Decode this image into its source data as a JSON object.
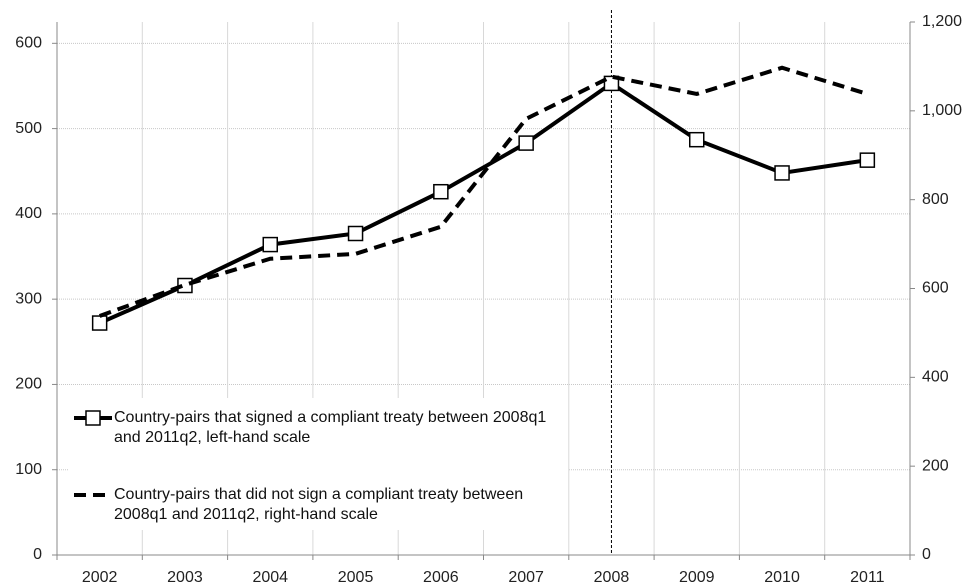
{
  "chart_data": {
    "type": "line",
    "categories": [
      "2002",
      "2003",
      "2004",
      "2005",
      "2006",
      "2007",
      "2008",
      "2009",
      "2010",
      "2011"
    ],
    "series": [
      {
        "name": "Country-pairs that signed a compliant treaty between 2008q1 and 2011q2, left-hand scale",
        "color": "#000000",
        "style": "solid",
        "marker": "square",
        "axis": "y",
        "values": [
          272,
          316,
          364,
          377,
          426,
          483,
          553,
          487,
          448,
          463
        ]
      },
      {
        "name": "Country-pairs that did not sign a compliant treaty between 2008q1 and 2011q2, right-hand scale",
        "color": "#000000",
        "style": "dashed",
        "marker": "none",
        "axis": "y2",
        "values": [
          538,
          608,
          667,
          678,
          739,
          982,
          1077,
          1038,
          1097,
          1038
        ]
      }
    ],
    "ylim": [
      0,
      625
    ],
    "yticks": [
      0,
      100,
      200,
      300,
      400,
      500,
      600
    ],
    "y2lim": [
      0,
      1200
    ],
    "y2ticks": [
      0,
      200,
      400,
      600,
      800,
      {
        "value": 1000,
        "label": "1,000"
      },
      {
        "value": 1200,
        "label": "1,200"
      }
    ],
    "grid": true,
    "vline": "2008",
    "legend": "lower-left"
  }
}
